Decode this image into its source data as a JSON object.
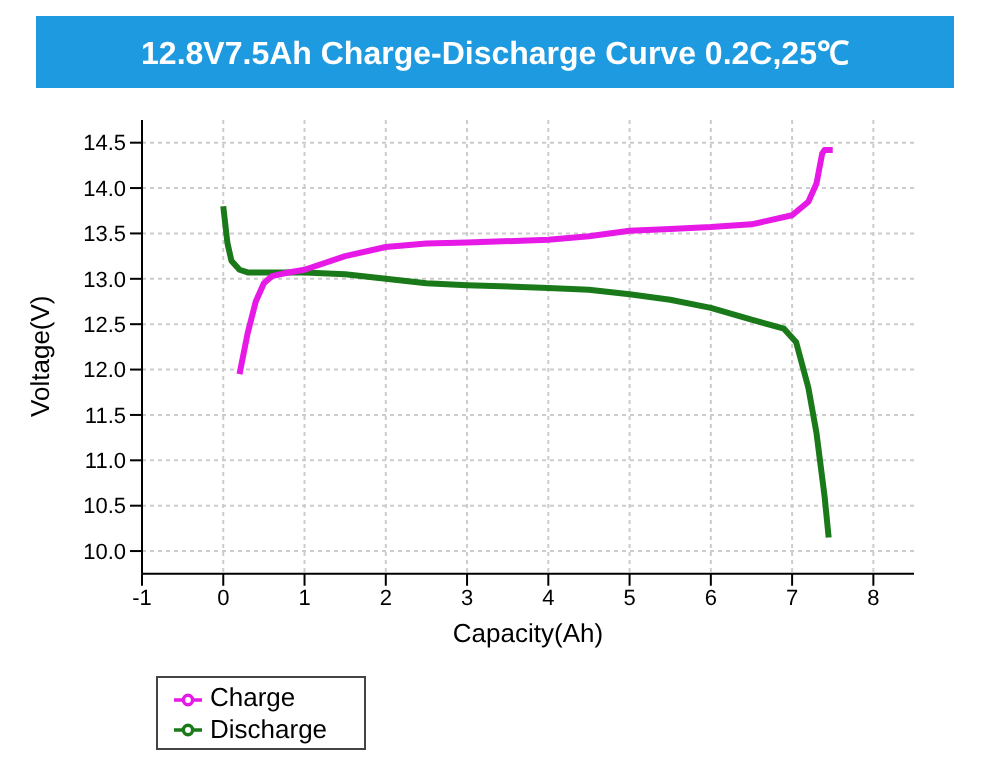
{
  "chart_data": {
    "type": "line",
    "title": "12.8V7.5Ah Charge-Discharge Curve 0.2C,25℃",
    "xlabel": "Capacity(Ah)",
    "ylabel": "Voltage(V)",
    "xlim": [
      -1,
      8.5
    ],
    "xticks": [
      -1,
      0,
      1,
      2,
      3,
      4,
      5,
      6,
      7,
      8
    ],
    "ylim": [
      9.75,
      14.75
    ],
    "yticks": [
      {
        "value": 10,
        "label": "10.0"
      },
      {
        "value": 10.5,
        "label": "10.5"
      },
      {
        "value": 11,
        "label": "11.0"
      },
      {
        "value": 11.5,
        "label": "11.5"
      },
      {
        "value": 12,
        "label": "12.0"
      },
      {
        "value": 12.5,
        "label": "12.5"
      },
      {
        "value": 13,
        "label": "13.0"
      },
      {
        "value": 13.5,
        "label": "13.5"
      },
      {
        "value": 14,
        "label": "14.0"
      },
      {
        "value": 14.5,
        "label": "14.5"
      }
    ],
    "grid": true,
    "legend": "bottom left",
    "marker": "none",
    "line_style": "solid",
    "series": [
      {
        "name": "Discharge",
        "color": "#1a7a1a",
        "x": [
          0,
          0.05,
          0.1,
          0.2,
          0.3,
          0.5,
          1,
          1.5,
          2,
          2.5,
          3,
          4,
          4.5,
          5,
          5.5,
          6,
          6.5,
          6.9,
          7.05,
          7.2,
          7.3,
          7.4,
          7.45
        ],
        "values": [
          13.8,
          13.4,
          13.2,
          13.1,
          13.07,
          13.07,
          13.07,
          13.05,
          13.0,
          12.95,
          12.93,
          12.9,
          12.88,
          12.83,
          12.77,
          12.68,
          12.55,
          12.45,
          12.3,
          11.8,
          11.3,
          10.6,
          10.15
        ]
      },
      {
        "name": "Charge",
        "color": "#e619e6",
        "x": [
          0.2,
          0.3,
          0.4,
          0.5,
          0.6,
          0.8,
          1,
          1.5,
          2,
          2.5,
          3,
          4,
          4.5,
          5,
          5.5,
          6,
          6.5,
          7,
          7.2,
          7.3,
          7.37,
          7.4,
          7.5
        ],
        "values": [
          11.95,
          12.4,
          12.75,
          12.95,
          13.03,
          13.07,
          13.1,
          13.25,
          13.35,
          13.39,
          13.4,
          13.43,
          13.47,
          13.53,
          13.55,
          13.57,
          13.6,
          13.7,
          13.85,
          14.05,
          14.38,
          14.42,
          14.42
        ]
      }
    ]
  }
}
